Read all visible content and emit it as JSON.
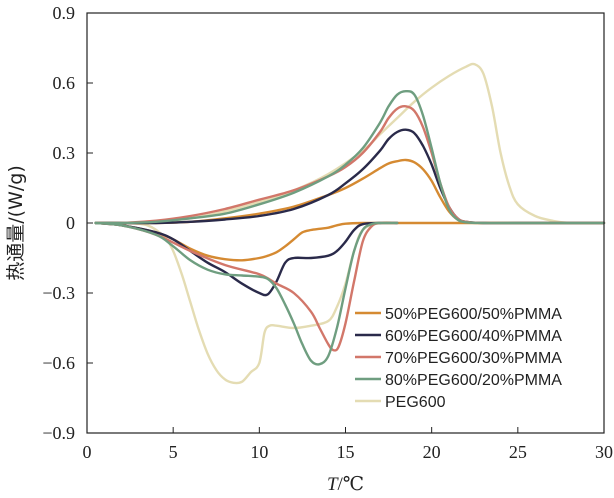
{
  "chart_data": {
    "type": "line",
    "xlabel_italic": "T",
    "xlabel_rest": "/℃",
    "ylabel": "热通量/(W/g)",
    "xlim": [
      0,
      30
    ],
    "ylim": [
      -0.9,
      0.9
    ],
    "x_ticks": [
      0,
      5,
      10,
      15,
      20,
      25,
      30
    ],
    "y_ticks": [
      0.9,
      0.6,
      0.3,
      0,
      -0.3,
      -0.6,
      -0.9
    ],
    "y_tick_labels": [
      "0.9",
      "0.6",
      "0.3",
      "0",
      "−0.3",
      "−0.6",
      "−0.9"
    ],
    "grid": false,
    "legend_position": "bottom-right",
    "colors": {
      "axis": "#222222",
      "s50": "#D58A32",
      "s60": "#2A2A4A",
      "s70": "#D2776A",
      "s80": "#6F9E80",
      "peg": "#E4DCB3"
    },
    "series": [
      {
        "name": "50%PEG600/50%PMMA",
        "color": "#D58A32",
        "heating": {
          "x": [
            0.5,
            2,
            4,
            6,
            8,
            10,
            12,
            14,
            15,
            16,
            17,
            17.5,
            18,
            18.5,
            19,
            19.5,
            20,
            20.5,
            21,
            21.5,
            22,
            23,
            25,
            30
          ],
          "y": [
            0,
            0,
            0,
            0.005,
            0.02,
            0.04,
            0.07,
            0.12,
            0.15,
            0.19,
            0.235,
            0.255,
            0.265,
            0.27,
            0.26,
            0.23,
            0.18,
            0.11,
            0.05,
            0.015,
            0.003,
            0,
            0,
            0
          ]
        },
        "cooling": {
          "x": [
            0.5,
            2,
            4,
            5,
            6,
            7,
            8,
            9,
            10,
            10.5,
            11,
            11.5,
            12,
            12.5,
            13,
            13.5,
            14,
            14.5,
            15,
            16,
            17,
            18,
            30
          ],
          "y": [
            0,
            -0.01,
            -0.04,
            -0.07,
            -0.11,
            -0.14,
            -0.155,
            -0.16,
            -0.15,
            -0.14,
            -0.125,
            -0.1,
            -0.07,
            -0.04,
            -0.03,
            -0.025,
            -0.02,
            -0.01,
            -0.003,
            0,
            0,
            0,
            0
          ]
        }
      },
      {
        "name": "60%PEG600/40%PMMA",
        "color": "#2A2A4A",
        "heating": {
          "x": [
            0.5,
            2,
            4,
            6,
            8,
            10,
            12,
            14,
            15,
            16,
            17,
            17.5,
            18,
            18.5,
            19,
            19.5,
            20,
            20.5,
            21,
            21.5,
            22,
            23,
            25,
            30
          ],
          "y": [
            0,
            0,
            0,
            0.005,
            0.015,
            0.03,
            0.06,
            0.12,
            0.17,
            0.23,
            0.31,
            0.36,
            0.39,
            0.4,
            0.385,
            0.33,
            0.25,
            0.15,
            0.07,
            0.02,
            0.005,
            0,
            0,
            0
          ]
        },
        "cooling": {
          "x": [
            0.5,
            2,
            4,
            5,
            6,
            7,
            8,
            9,
            10,
            10.5,
            11,
            11.5,
            12,
            13,
            14,
            14.5,
            15,
            15.5,
            16,
            17,
            18
          ],
          "y": [
            0,
            -0.01,
            -0.04,
            -0.07,
            -0.12,
            -0.17,
            -0.21,
            -0.26,
            -0.3,
            -0.305,
            -0.25,
            -0.17,
            -0.15,
            -0.15,
            -0.14,
            -0.12,
            -0.08,
            -0.03,
            -0.005,
            0,
            0
          ]
        }
      },
      {
        "name": "70%PEG600/30%PMMA",
        "color": "#D2776A",
        "heating": {
          "x": [
            0.5,
            2,
            4,
            6,
            8,
            10,
            12,
            14,
            15,
            16,
            17,
            17.5,
            18,
            18.5,
            19,
            19.5,
            20,
            20.5,
            21,
            21.5,
            22,
            23,
            25,
            30
          ],
          "y": [
            0,
            0,
            0.01,
            0.03,
            0.06,
            0.1,
            0.14,
            0.2,
            0.24,
            0.3,
            0.39,
            0.45,
            0.49,
            0.5,
            0.48,
            0.41,
            0.3,
            0.17,
            0.07,
            0.02,
            0.005,
            0,
            0,
            0
          ]
        },
        "cooling": {
          "x": [
            0.5,
            2,
            4,
            6,
            8,
            10,
            11,
            12,
            13,
            13.5,
            14,
            14.3,
            14.6,
            15,
            15.5,
            16,
            16.5,
            17,
            18
          ],
          "y": [
            0,
            -0.01,
            -0.05,
            -0.12,
            -0.18,
            -0.22,
            -0.26,
            -0.3,
            -0.38,
            -0.45,
            -0.52,
            -0.545,
            -0.53,
            -0.43,
            -0.25,
            -0.08,
            -0.015,
            0,
            0
          ]
        }
      },
      {
        "name": "80%PEG600/20%PMMA",
        "color": "#6F9E80",
        "heating": {
          "x": [
            0.5,
            2,
            4,
            6,
            8,
            10,
            12,
            14,
            15,
            16,
            17,
            17.5,
            18,
            18.5,
            19,
            19.5,
            20,
            20.5,
            21,
            21.5,
            22,
            23,
            25,
            30
          ],
          "y": [
            0,
            0,
            0.005,
            0.02,
            0.04,
            0.08,
            0.13,
            0.2,
            0.25,
            0.32,
            0.43,
            0.5,
            0.55,
            0.565,
            0.55,
            0.46,
            0.32,
            0.17,
            0.06,
            0.015,
            0.003,
            0,
            0,
            0
          ]
        },
        "cooling": {
          "x": [
            0.5,
            2,
            4,
            5,
            6,
            7,
            8,
            9,
            10,
            10.5,
            11,
            11.5,
            12,
            12.5,
            13,
            13.5,
            14,
            14.5,
            15,
            15.5,
            16,
            16.5,
            17,
            18
          ],
          "y": [
            0,
            -0.01,
            -0.05,
            -0.1,
            -0.16,
            -0.2,
            -0.22,
            -0.225,
            -0.23,
            -0.24,
            -0.28,
            -0.35,
            -0.43,
            -0.52,
            -0.59,
            -0.605,
            -0.57,
            -0.45,
            -0.28,
            -0.12,
            -0.03,
            -0.005,
            0,
            0
          ]
        }
      },
      {
        "name": "PEG600",
        "color": "#E4DCB3",
        "heating": {
          "x": [
            0.5,
            2,
            4,
            6,
            8,
            10,
            12,
            14,
            16,
            17,
            18,
            19,
            20,
            21,
            22,
            22.5,
            23,
            23.5,
            24,
            24.5,
            25,
            26,
            27,
            28,
            30
          ],
          "y": [
            0,
            0,
            0.005,
            0.02,
            0.05,
            0.09,
            0.14,
            0.21,
            0.31,
            0.38,
            0.45,
            0.52,
            0.58,
            0.63,
            0.67,
            0.68,
            0.64,
            0.5,
            0.3,
            0.16,
            0.08,
            0.03,
            0.01,
            0,
            0
          ]
        },
        "cooling": {
          "x": [
            0.5,
            2,
            3.5,
            4.5,
            5,
            5.5,
            6,
            6.5,
            7,
            7.5,
            8,
            8.5,
            9,
            9.5,
            10,
            10.3,
            10.6,
            11,
            12,
            13,
            14,
            14.5,
            15,
            15.5,
            16,
            17,
            18
          ],
          "y": [
            0,
            0,
            -0.01,
            -0.06,
            -0.12,
            -0.22,
            -0.34,
            -0.46,
            -0.56,
            -0.63,
            -0.67,
            -0.685,
            -0.68,
            -0.64,
            -0.6,
            -0.47,
            -0.44,
            -0.44,
            -0.45,
            -0.44,
            -0.42,
            -0.36,
            -0.26,
            -0.12,
            -0.03,
            0,
            0
          ]
        }
      }
    ]
  }
}
